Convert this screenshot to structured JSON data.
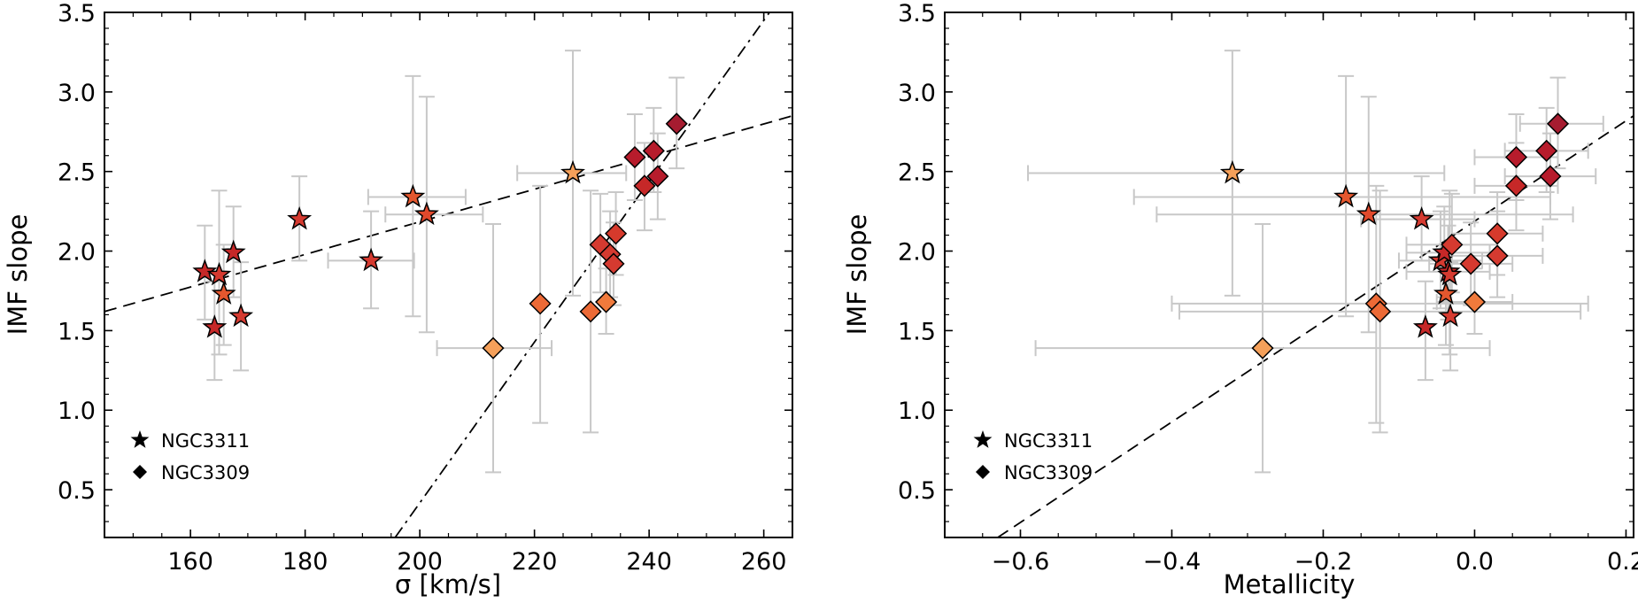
{
  "colors": {
    "errorbar": "#c8c8c8",
    "marker_edge": "#000000",
    "background": "#ffffff"
  },
  "chart_data": [
    {
      "type": "scatter",
      "panel": "left",
      "xlabel": "σ [km/s]",
      "ylabel": "IMF slope",
      "xlim": [
        145,
        265
      ],
      "ylim": [
        0.2,
        3.5
      ],
      "xticks": [
        160,
        180,
        200,
        220,
        240,
        260
      ],
      "yticks": [
        0.5,
        1.0,
        1.5,
        2.0,
        2.5,
        3.0,
        3.5
      ],
      "xtick_labels": [
        "160",
        "180",
        "200",
        "220",
        "240",
        "260"
      ],
      "ytick_labels": [
        "0.5",
        "1.0",
        "1.5",
        "2.0",
        "2.5",
        "3.0",
        "3.5"
      ],
      "legend_position": "lower-left",
      "legend": [
        {
          "label": "NGC3311",
          "marker": "star"
        },
        {
          "label": "NGC3309",
          "marker": "diamond"
        }
      ],
      "fit_lines": [
        {
          "style": "dashed",
          "x": [
            145,
            265
          ],
          "y": [
            1.62,
            2.85
          ]
        },
        {
          "style": "dashdot",
          "x": [
            195.7,
            261
          ],
          "y": [
            0.2,
            3.5
          ]
        }
      ],
      "series": [
        {
          "name": "NGC3311",
          "marker": "star",
          "points": [
            {
              "x": 162.5,
              "y": 1.87,
              "ylo": 1.57,
              "yhi": 2.16,
              "color": "#c62828"
            },
            {
              "x": 164.2,
              "y": 1.52,
              "ylo": 1.19,
              "yhi": 1.81,
              "color": "#c62828"
            },
            {
              "x": 165.0,
              "y": 1.85,
              "ylo": 1.35,
              "yhi": 2.38,
              "color": "#d53a30"
            },
            {
              "x": 165.8,
              "y": 1.73,
              "ylo": 1.41,
              "yhi": 2.04,
              "color": "#e4572e"
            },
            {
              "x": 167.5,
              "y": 1.99,
              "ylo": 1.71,
              "yhi": 2.28,
              "color": "#c62828"
            },
            {
              "x": 168.8,
              "y": 1.59,
              "ylo": 1.25,
              "yhi": 1.93,
              "color": "#d53a30"
            },
            {
              "x": 179.0,
              "y": 2.2,
              "ylo": 1.94,
              "yhi": 2.47,
              "color": "#d53a30"
            },
            {
              "x": 191.5,
              "y": 1.94,
              "ylo": 1.64,
              "yhi": 2.25,
              "color": "#d53a30",
              "xlo": 184,
              "xhi": 199
            },
            {
              "x": 198.8,
              "y": 2.34,
              "ylo": 1.59,
              "yhi": 3.1,
              "color": "#e4572e",
              "xlo": 191,
              "xhi": 208
            },
            {
              "x": 201.2,
              "y": 2.23,
              "ylo": 1.49,
              "yhi": 2.97,
              "color": "#e0492c",
              "xlo": 194,
              "xhi": 211
            },
            {
              "x": 226.7,
              "y": 2.49,
              "ylo": 1.72,
              "yhi": 3.26,
              "color": "#f5a05a",
              "xlo": 217,
              "xhi": 236
            }
          ]
        },
        {
          "name": "NGC3309",
          "marker": "diamond",
          "points": [
            {
              "x": 212.8,
              "y": 1.39,
              "ylo": 0.61,
              "yhi": 2.17,
              "color": "#f5a05a",
              "xlo": 203,
              "xhi": 223
            },
            {
              "x": 221.0,
              "y": 1.67,
              "ylo": 0.92,
              "yhi": 2.41,
              "color": "#ec6a36"
            },
            {
              "x": 229.8,
              "y": 1.62,
              "ylo": 0.86,
              "yhi": 2.38,
              "color": "#ec6a36"
            },
            {
              "x": 231.5,
              "y": 2.04,
              "ylo": 1.74,
              "yhi": 2.36,
              "color": "#d53a30"
            },
            {
              "x": 232.5,
              "y": 1.68,
              "ylo": 1.48,
              "yhi": 1.89,
              "color": "#f07a3c"
            },
            {
              "x": 233.2,
              "y": 1.98,
              "ylo": 1.71,
              "yhi": 2.25,
              "color": "#d53a30"
            },
            {
              "x": 233.8,
              "y": 1.92,
              "ylo": 1.66,
              "yhi": 2.18,
              "color": "#d53a30"
            },
            {
              "x": 234.2,
              "y": 2.11,
              "ylo": 1.85,
              "yhi": 2.37,
              "color": "#d63a2c"
            },
            {
              "x": 237.5,
              "y": 2.59,
              "ylo": 2.32,
              "yhi": 2.86,
              "color": "#b71c2c"
            },
            {
              "x": 239.2,
              "y": 2.41,
              "ylo": 2.13,
              "yhi": 2.68,
              "color": "#c62828"
            },
            {
              "x": 240.8,
              "y": 2.63,
              "ylo": 2.37,
              "yhi": 2.9,
              "color": "#b71c2c"
            },
            {
              "x": 241.5,
              "y": 2.47,
              "ylo": 2.2,
              "yhi": 2.74,
              "color": "#b71c2c"
            },
            {
              "x": 244.8,
              "y": 2.8,
              "ylo": 2.52,
              "yhi": 3.09,
              "color": "#a61c30"
            }
          ]
        }
      ]
    },
    {
      "type": "scatter",
      "panel": "right",
      "xlabel": "Metallicity",
      "ylabel": "IMF slope",
      "xlim": [
        -0.7,
        0.21
      ],
      "ylim": [
        0.2,
        3.5
      ],
      "xticks": [
        -0.6,
        -0.4,
        -0.2,
        0.0,
        0.2
      ],
      "yticks": [
        0.5,
        1.0,
        1.5,
        2.0,
        2.5,
        3.0,
        3.5
      ],
      "xtick_labels": [
        "−0.6",
        "−0.4",
        "−0.2",
        "0.0",
        "0.2"
      ],
      "ytick_labels": [
        "0.5",
        "1.0",
        "1.5",
        "2.0",
        "2.5",
        "3.0",
        "3.5"
      ],
      "legend_position": "lower-left",
      "legend": [
        {
          "label": "NGC3311",
          "marker": "star"
        },
        {
          "label": "NGC3309",
          "marker": "diamond"
        }
      ],
      "fit_lines": [
        {
          "style": "dashed",
          "x": [
            -0.63,
            0.21
          ],
          "y": [
            0.2,
            2.85
          ]
        }
      ],
      "series": [
        {
          "name": "NGC3311",
          "marker": "star",
          "points": [
            {
              "x": -0.32,
              "y": 2.49,
              "ylo": 1.72,
              "yhi": 3.26,
              "xlo": -0.59,
              "xhi": -0.04,
              "color": "#f5a05a"
            },
            {
              "x": -0.17,
              "y": 2.34,
              "ylo": 1.59,
              "yhi": 3.1,
              "xlo": -0.45,
              "xhi": 0.1,
              "color": "#e4572e"
            },
            {
              "x": -0.14,
              "y": 2.23,
              "ylo": 1.49,
              "yhi": 2.97,
              "xlo": -0.42,
              "xhi": 0.13,
              "color": "#e0492c"
            },
            {
              "x": -0.07,
              "y": 2.2,
              "ylo": 1.94,
              "yhi": 2.47,
              "xlo": -0.15,
              "xhi": 0.0,
              "color": "#d53a30"
            },
            {
              "x": -0.065,
              "y": 1.52,
              "ylo": 1.19,
              "yhi": 1.81,
              "color": "#c62828"
            },
            {
              "x": -0.045,
              "y": 1.94,
              "ylo": 1.64,
              "yhi": 2.25,
              "xlo": -0.1,
              "xhi": 0.01,
              "color": "#d53a30"
            },
            {
              "x": -0.04,
              "y": 1.99,
              "ylo": 1.71,
              "yhi": 2.28,
              "xlo": -0.09,
              "xhi": 0.02,
              "color": "#c62828"
            },
            {
              "x": -0.038,
              "y": 1.73,
              "ylo": 1.41,
              "yhi": 2.04,
              "color": "#e4572e"
            },
            {
              "x": -0.035,
              "y": 1.87,
              "ylo": 1.57,
              "yhi": 2.16,
              "xlo": -0.09,
              "xhi": 0.02,
              "color": "#c62828"
            },
            {
              "x": -0.033,
              "y": 1.85,
              "ylo": 1.35,
              "yhi": 2.38,
              "color": "#d53a30"
            },
            {
              "x": -0.032,
              "y": 1.59,
              "ylo": 1.25,
              "yhi": 1.93,
              "color": "#d53a30"
            }
          ]
        },
        {
          "name": "NGC3309",
          "marker": "diamond",
          "points": [
            {
              "x": -0.28,
              "y": 1.39,
              "ylo": 0.61,
              "yhi": 2.17,
              "xlo": -0.58,
              "xhi": 0.02,
              "color": "#f5a05a"
            },
            {
              "x": -0.13,
              "y": 1.67,
              "ylo": 0.92,
              "yhi": 2.41,
              "xlo": -0.4,
              "xhi": 0.15,
              "color": "#ec6a36"
            },
            {
              "x": -0.125,
              "y": 1.62,
              "ylo": 0.86,
              "yhi": 2.38,
              "xlo": -0.39,
              "xhi": 0.14,
              "color": "#ec6a36"
            },
            {
              "x": -0.03,
              "y": 2.04,
              "ylo": 1.74,
              "yhi": 2.36,
              "xlo": -0.09,
              "xhi": 0.03,
              "color": "#d53a30"
            },
            {
              "x": -0.005,
              "y": 1.92,
              "ylo": 1.66,
              "yhi": 2.18,
              "xlo": -0.06,
              "xhi": 0.05,
              "color": "#d53a30"
            },
            {
              "x": 0.0,
              "y": 1.68,
              "ylo": 1.48,
              "yhi": 1.89,
              "xlo": -0.05,
              "xhi": 0.05,
              "color": "#f07a3c"
            },
            {
              "x": 0.03,
              "y": 2.11,
              "ylo": 1.85,
              "yhi": 2.37,
              "xlo": -0.03,
              "xhi": 0.09,
              "color": "#d63a2c"
            },
            {
              "x": 0.03,
              "y": 1.97,
              "ylo": 1.71,
              "yhi": 2.25,
              "xlo": -0.03,
              "xhi": 0.09,
              "color": "#d53a30"
            },
            {
              "x": 0.055,
              "y": 2.59,
              "ylo": 2.32,
              "yhi": 2.86,
              "xlo": 0.0,
              "xhi": 0.11,
              "color": "#b71c2c"
            },
            {
              "x": 0.055,
              "y": 2.41,
              "ylo": 2.13,
              "yhi": 2.68,
              "xlo": 0.0,
              "xhi": 0.11,
              "color": "#c62828"
            },
            {
              "x": 0.095,
              "y": 2.63,
              "ylo": 2.37,
              "yhi": 2.9,
              "xlo": 0.04,
              "xhi": 0.15,
              "color": "#b71c2c"
            },
            {
              "x": 0.1,
              "y": 2.47,
              "ylo": 2.2,
              "yhi": 2.74,
              "xlo": 0.04,
              "xhi": 0.16,
              "color": "#b71c2c"
            },
            {
              "x": 0.11,
              "y": 2.8,
              "ylo": 2.52,
              "yhi": 3.09,
              "xlo": 0.06,
              "xhi": 0.17,
              "color": "#a61c30"
            }
          ]
        }
      ]
    }
  ]
}
